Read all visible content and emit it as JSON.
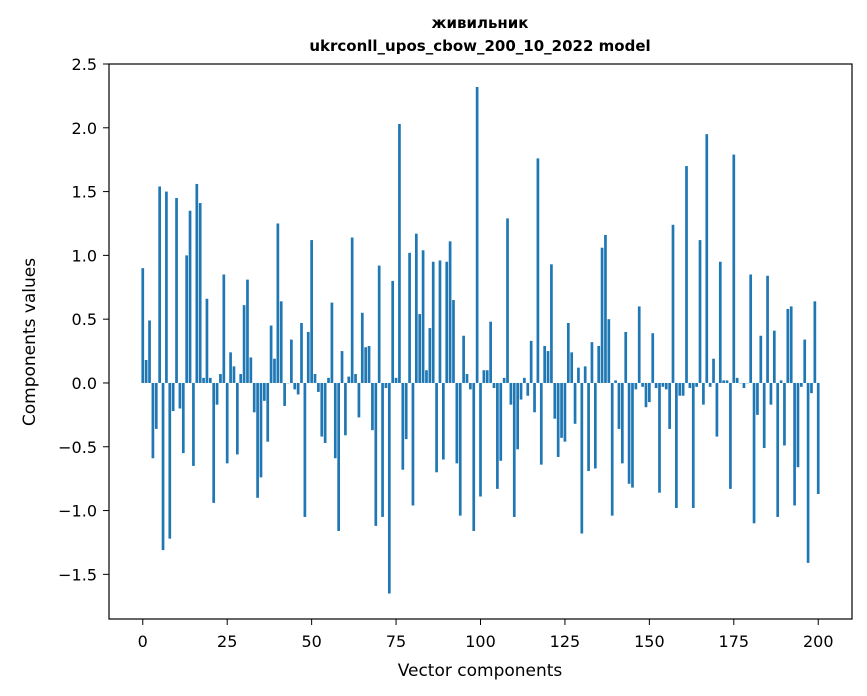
{
  "chart_data": {
    "type": "bar",
    "title": "живильник",
    "subtitle": "ukrconll_upos_cbow_200_10_2022 model",
    "xlabel": "Vector components",
    "ylabel": "Components values",
    "xlim": [
      -10,
      210
    ],
    "ylim": [
      -1.85,
      2.5
    ],
    "xticks": [
      0,
      25,
      50,
      75,
      100,
      125,
      150,
      175,
      200
    ],
    "yticks": [
      -1.5,
      -1.0,
      -0.5,
      0.0,
      0.5,
      1.0,
      1.5,
      2.0,
      2.5
    ],
    "ytick_labels": [
      "−1.5",
      "−1.0",
      "−0.5",
      "0.0",
      "0.5",
      "1.0",
      "1.5",
      "2.0",
      "2.5"
    ],
    "bar_color": "#1f77b4",
    "grid": false,
    "values": [
      0.9,
      0.18,
      0.49,
      -0.59,
      -0.36,
      1.54,
      -1.31,
      1.5,
      -1.22,
      -0.22,
      1.45,
      -0.2,
      -0.55,
      1.0,
      1.35,
      -0.65,
      1.56,
      1.41,
      0.04,
      0.66,
      0.04,
      -0.94,
      -0.17,
      0.07,
      0.85,
      -0.63,
      0.24,
      0.13,
      -0.56,
      0.07,
      0.61,
      0.81,
      0.2,
      -0.23,
      -0.9,
      -0.74,
      -0.14,
      -0.46,
      0.45,
      0.19,
      1.25,
      0.64,
      -0.18,
      0.0,
      0.34,
      -0.05,
      -0.09,
      0.47,
      -1.05,
      0.4,
      1.12,
      0.07,
      -0.07,
      -0.42,
      -0.47,
      0.04,
      0.63,
      -0.59,
      -1.16,
      0.25,
      -0.41,
      0.05,
      1.14,
      0.07,
      -0.27,
      0.55,
      0.28,
      0.29,
      -0.37,
      -1.12,
      0.92,
      -1.05,
      -0.04,
      -1.65,
      0.8,
      0.04,
      2.03,
      -0.68,
      -0.44,
      1.02,
      -0.96,
      1.17,
      0.54,
      1.04,
      0.1,
      0.43,
      0.95,
      -0.7,
      0.96,
      -0.6,
      0.95,
      1.11,
      0.65,
      -0.63,
      -1.04,
      0.37,
      0.07,
      -0.05,
      -1.16,
      2.32,
      -0.89,
      0.1,
      0.1,
      0.48,
      -0.04,
      -0.83,
      -0.61,
      0.04,
      1.29,
      -0.17,
      -1.05,
      -0.52,
      -0.13,
      0.04,
      -0.1,
      0.33,
      -0.23,
      1.76,
      -0.64,
      0.29,
      0.25,
      0.93,
      -0.28,
      -0.58,
      -0.43,
      -0.46,
      0.47,
      0.24,
      -0.32,
      0.12,
      -1.18,
      0.13,
      -0.69,
      0.32,
      -0.67,
      0.29,
      1.06,
      1.16,
      0.5,
      -1.04,
      0.02,
      -0.36,
      -0.63,
      0.4,
      -0.79,
      -0.82,
      -0.05,
      0.6,
      -0.03,
      -0.19,
      -0.15,
      0.39,
      -0.04,
      -0.86,
      -0.03,
      -0.05,
      -0.36,
      1.24,
      -0.98,
      -0.1,
      -0.1,
      1.7,
      -0.04,
      -0.98,
      -0.03,
      1.12,
      -0.17,
      1.95,
      -0.03,
      0.19,
      -0.42,
      0.95,
      0.02,
      0.02,
      -0.83,
      1.79,
      0.04,
      0.0,
      -0.04,
      0.0,
      0.85,
      -1.1,
      -0.25,
      0.37,
      -0.51,
      0.84,
      -0.17,
      0.41,
      -1.05,
      0.02,
      -0.49,
      0.58,
      0.6,
      -0.96,
      -0.66,
      -0.03,
      0.34,
      -1.41,
      -0.08,
      0.64,
      -0.87
    ]
  }
}
